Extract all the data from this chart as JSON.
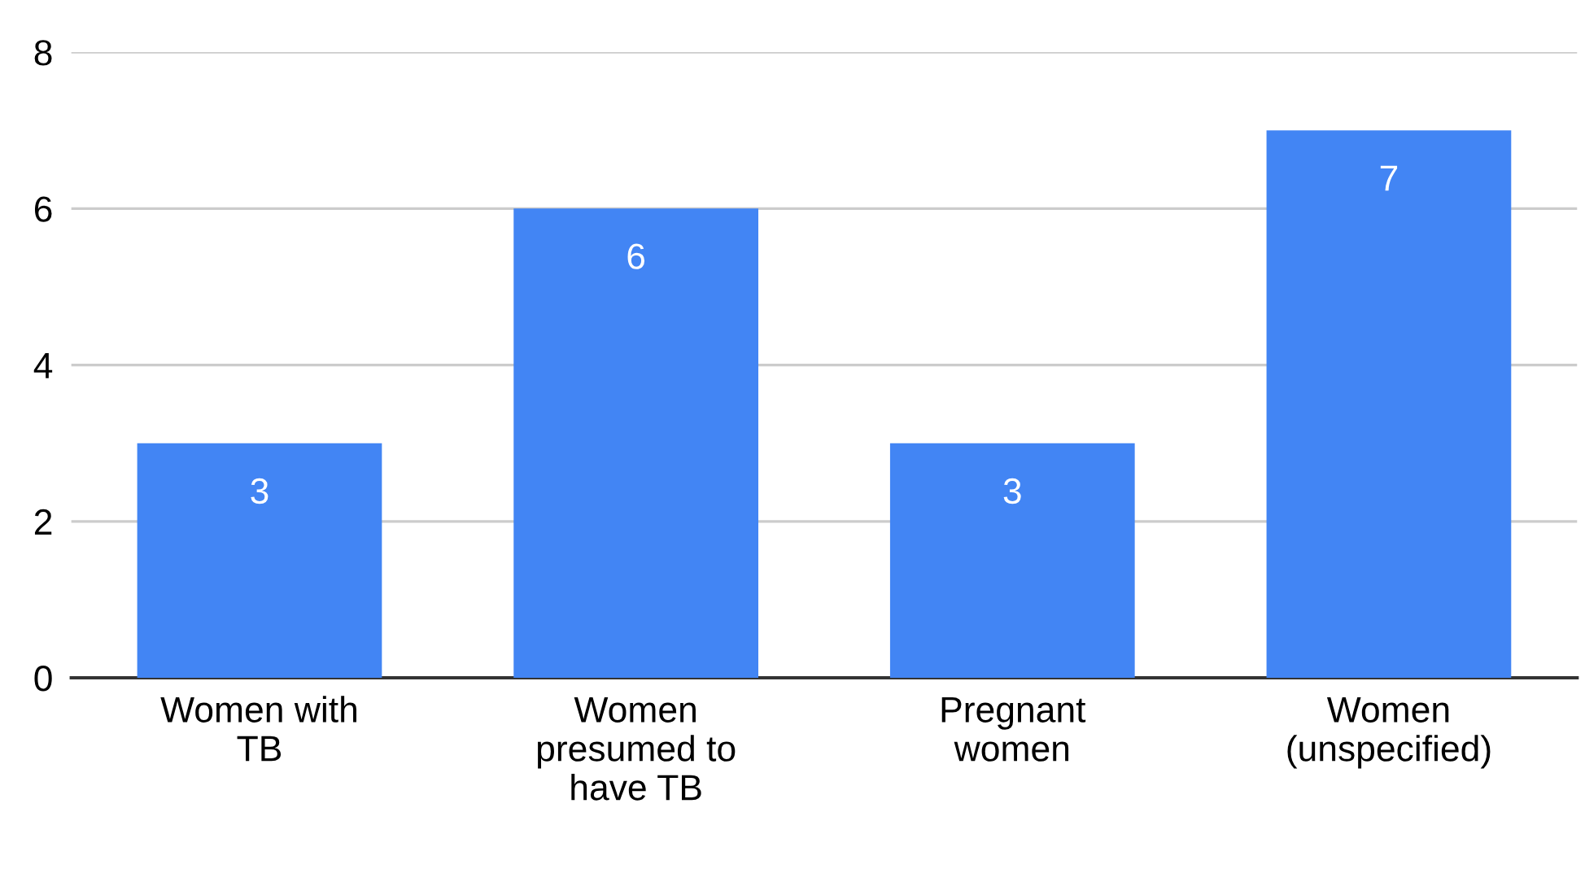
{
  "chart_data": {
    "type": "bar",
    "categories": [
      "Women with TB",
      "Women presumed to have TB",
      "Pregnant women",
      "Women (unspecified)"
    ],
    "values": [
      3,
      6,
      3,
      7
    ],
    "color": "#4285f4",
    "ylim": [
      0,
      8
    ],
    "yticks": [
      0,
      2,
      4,
      6,
      8
    ],
    "grid": "y",
    "data_labels": true
  }
}
